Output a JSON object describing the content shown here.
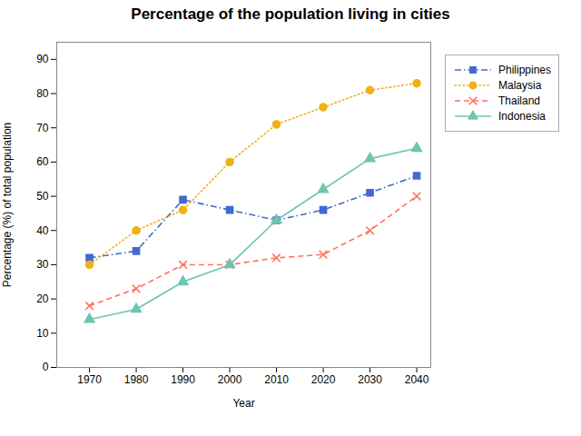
{
  "chart_data": {
    "type": "line",
    "title": "Percentage of the population living in cities",
    "xlabel": "Year",
    "ylabel": "Percentage (%) of total population",
    "x": [
      1970,
      1980,
      1990,
      2000,
      2010,
      2020,
      2030,
      2040
    ],
    "series": [
      {
        "name": "Philippines",
        "values": [
          32,
          34,
          49,
          46,
          43,
          46,
          51,
          56
        ],
        "marker": "square",
        "line_style": "dashdot"
      },
      {
        "name": "Malaysia",
        "values": [
          30,
          40,
          46,
          60,
          71,
          76,
          81,
          83
        ],
        "marker": "circle",
        "line_style": "dotted"
      },
      {
        "name": "Thailand",
        "values": [
          18,
          23,
          30,
          30,
          32,
          33,
          40,
          50
        ],
        "marker": "times",
        "line_style": "dashed"
      },
      {
        "name": "Indonesia",
        "values": [
          14,
          17,
          25,
          30,
          43,
          52,
          61,
          64
        ],
        "marker": "triangle",
        "line_style": "solid"
      }
    ],
    "xlim": [
      1963,
      2043
    ],
    "xticks": [
      1970,
      1980,
      1990,
      2000,
      2010,
      2020,
      2030,
      2040
    ],
    "ylim": [
      0,
      95
    ],
    "yticks": [
      0,
      10,
      20,
      30,
      40,
      50,
      60,
      70,
      80,
      90
    ],
    "grid": false,
    "legend": "right"
  }
}
